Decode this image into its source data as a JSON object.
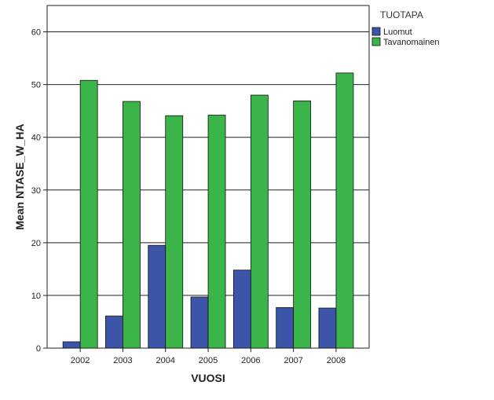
{
  "chart_data": {
    "type": "bar",
    "xlabel": "VUOSI",
    "ylabel": "Mean NTASE_W_HA",
    "ylim": [
      0,
      65
    ],
    "yticks": [
      0,
      10,
      20,
      30,
      40,
      50,
      60
    ],
    "grid": true,
    "legend_position": "top-right",
    "legend_title": "TUOTAPA",
    "categories": [
      "2002",
      "2003",
      "2004",
      "2005",
      "2006",
      "2007",
      "2008"
    ],
    "series": [
      {
        "name": "Luomut",
        "color": "#3d55a8",
        "values": [
          1.2,
          6.1,
          19.5,
          9.7,
          14.8,
          7.7,
          7.6
        ]
      },
      {
        "name": "Tavanomainen",
        "color": "#3bb54a",
        "values": [
          50.8,
          46.8,
          44.1,
          44.2,
          48.0,
          46.9,
          52.2
        ]
      }
    ]
  }
}
